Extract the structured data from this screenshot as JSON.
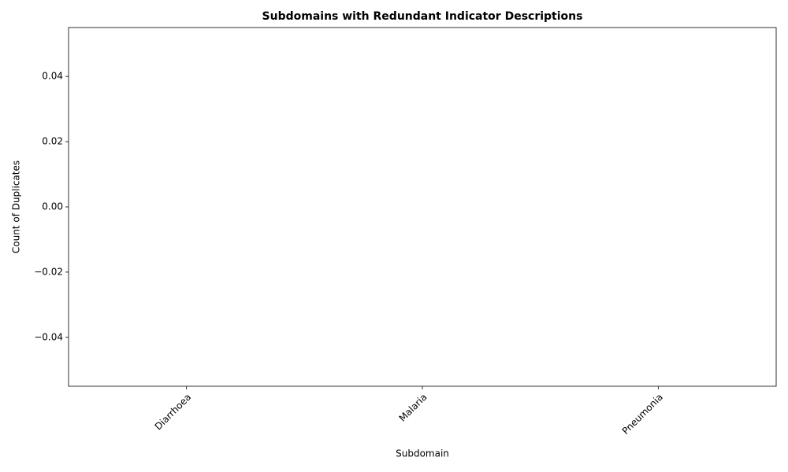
{
  "chart_data": {
    "type": "bar",
    "title": "Subdomains with Redundant Indicator Descriptions",
    "x_label": "Subdomain",
    "y_label": "Count of Duplicates",
    "categories": [
      "Diarrhoea",
      "Malaria",
      "Pneumonia"
    ],
    "values": [
      0,
      0,
      0
    ],
    "color": "#1f77b4",
    "ylim": [
      -0.055,
      0.055
    ],
    "yticks": [
      {
        "value": -0.04,
        "label": "−0.04"
      },
      {
        "value": -0.02,
        "label": "−0.02"
      },
      {
        "value": 0,
        "label": "0.00"
      },
      0.02,
      0.04
    ],
    "grid": false
  }
}
